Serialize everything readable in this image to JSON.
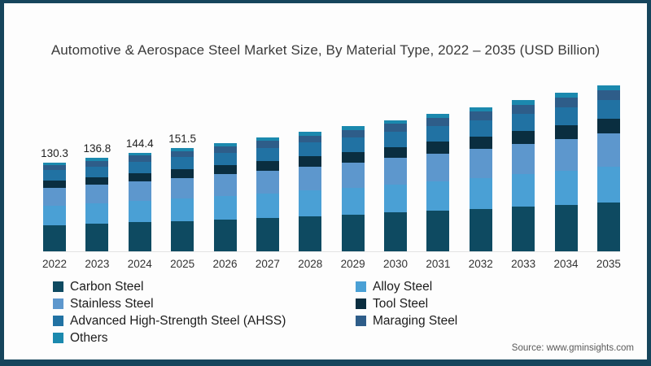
{
  "frame": {
    "border_color": "#16455c",
    "background": "#fdfdfd"
  },
  "header": {
    "title": "Automotive & Aerospace Steel Market Size, By Material Type, 2022 – 2035 (USD Billion)"
  },
  "footer": {
    "source": "Source: www.gminsights.com"
  },
  "chart_data": {
    "type": "bar",
    "stacked": true,
    "title": "Automotive & Aerospace Steel Market Size, By Material Type, 2022 – 2035 (USD Billion)",
    "unit": "USD Billion",
    "categories": [
      "2022",
      "2023",
      "2024",
      "2025",
      "2026",
      "2027",
      "2028",
      "2029",
      "2030",
      "2031",
      "2032",
      "2033",
      "2034",
      "2035"
    ],
    "totals": [
      130.3,
      136.8,
      144.4,
      151.5,
      158.9,
      166.6,
      174.7,
      183.2,
      192.1,
      201.4,
      211.2,
      221.5,
      232.2,
      243.5
    ],
    "data_labels": [
      "130.3",
      "136.8",
      "144.4",
      "151.5",
      "",
      "",
      "",
      "",
      "",
      "",
      "",
      "",
      "",
      ""
    ],
    "series": [
      {
        "name": "Carbon Steel",
        "color": "#0e4a61",
        "values": [
          38.4,
          40.4,
          42.6,
          44.7,
          46.9,
          49.1,
          51.5,
          54.0,
          56.7,
          59.4,
          62.3,
          65.3,
          68.5,
          71.8
        ]
      },
      {
        "name": "Alloy Steel",
        "color": "#4aa0d5",
        "values": [
          28.0,
          29.4,
          31.0,
          32.6,
          34.2,
          35.8,
          37.6,
          39.4,
          41.3,
          43.3,
          45.4,
          47.6,
          49.9,
          52.4
        ]
      },
      {
        "name": "Stainless Steel",
        "color": "#5d97cd",
        "values": [
          26.1,
          27.4,
          28.9,
          30.3,
          31.8,
          33.3,
          34.9,
          36.6,
          38.4,
          40.3,
          42.2,
          44.3,
          46.4,
          48.7
        ]
      },
      {
        "name": "Tool Steel",
        "color": "#0a2e40",
        "values": [
          11.1,
          11.6,
          12.3,
          12.9,
          13.5,
          14.2,
          14.9,
          15.6,
          16.3,
          17.1,
          18.0,
          18.8,
          19.7,
          20.7
        ]
      },
      {
        "name": "Advanced High-Strength Steel (AHSS)",
        "color": "#2172a3",
        "values": [
          15.0,
          15.7,
          16.6,
          17.4,
          18.3,
          19.2,
          20.1,
          21.1,
          22.1,
          23.2,
          24.3,
          25.5,
          26.7,
          28.0
        ]
      },
      {
        "name": "Maraging Steel",
        "color": "#2e5d89",
        "values": [
          7.8,
          8.2,
          8.7,
          9.1,
          9.5,
          10.0,
          10.5,
          11.0,
          11.5,
          12.1,
          12.7,
          13.3,
          14.0,
          14.6
        ]
      },
      {
        "name": "Others",
        "color": "#1b89ae",
        "values": [
          3.9,
          4.1,
          4.3,
          4.5,
          4.7,
          5.0,
          5.2,
          5.5,
          5.8,
          6.0,
          6.3,
          6.7,
          7.0,
          7.3
        ]
      }
    ],
    "ylim": [
      0,
      255
    ],
    "grid": false,
    "y_axis_visible": false,
    "legend_position": "bottom-left",
    "legend_columns": [
      [
        "Carbon Steel",
        "Stainless Steel",
        "Advanced High-Strength Steel (AHSS)",
        "Others"
      ],
      [
        "Alloy Steel",
        "Tool Steel",
        "Maraging Steel"
      ]
    ]
  }
}
